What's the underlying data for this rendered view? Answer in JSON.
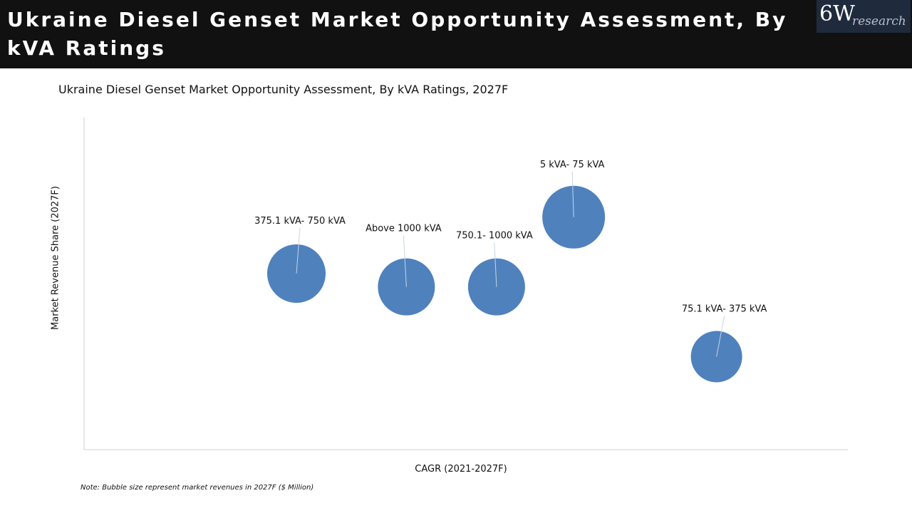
{
  "header": {
    "title": "Ukraine Diesel Genset Market Opportunity Assessment, By kVA Ratings",
    "logo_main": "6W",
    "logo_sub": "research"
  },
  "chart_data": {
    "type": "scatter",
    "subtype": "bubble",
    "title": "Ukraine Diesel Genset Market Opportunity Assessment, By kVA Ratings, 2027F",
    "xlabel": "CAGR (2021-2027F)",
    "ylabel": "Market Revenue Share (2027F)",
    "xlim": [
      0,
      100
    ],
    "ylim": [
      0,
      100
    ],
    "axis_ticks": "none (relative scale)",
    "grid": false,
    "bubble_color": "#4f81bd",
    "series": [
      {
        "name": "375.1 kVA- 750 kVA",
        "x": 27.8,
        "y": 53,
        "size": 41
      },
      {
        "name": "Above 1000 kVA",
        "x": 42.2,
        "y": 49,
        "size": 40
      },
      {
        "name": "750.1- 1000 kVA",
        "x": 54.0,
        "y": 49,
        "size": 40
      },
      {
        "name": "5 kVA- 75 kVA",
        "x": 64.1,
        "y": 70,
        "size": 44
      },
      {
        "name": "75.1 kVA- 375 kVA",
        "x": 82.8,
        "y": 28,
        "size": 36
      }
    ],
    "note": "Note: Bubble size represent market revenues in 2027F ($ Million)"
  }
}
